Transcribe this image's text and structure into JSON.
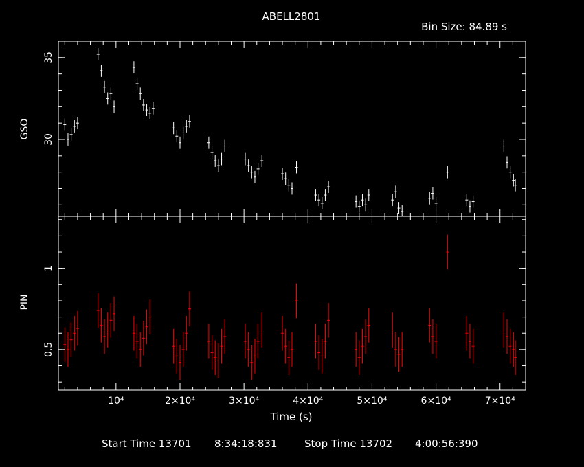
{
  "header": {
    "title": "ABELL2801",
    "bin_size": "Bin Size: 84.89 s"
  },
  "footer": {
    "start_label": "Start Time 13701",
    "start_time": "8:34:18:831",
    "stop_label": "Stop Time 13702",
    "stop_time": "4:00:56:390"
  },
  "colors": {
    "background": "#000000",
    "gso": "#ffffff",
    "pin": "#ff0000",
    "axes": "#ffffff"
  },
  "chart_data": [
    {
      "type": "scatter",
      "title": "ABELL2801",
      "xlabel": "Time (s)",
      "ylabel": "GSO",
      "xlim": [
        1000,
        74000
      ],
      "ylim": [
        25.3,
        36.0
      ],
      "y_ticks": [
        {
          "value": 30,
          "label": "30"
        },
        {
          "value": 35,
          "label": "35"
        }
      ],
      "series": [
        {
          "color": "#ffffff",
          "points": [
            [
              2000,
              30.9
            ],
            [
              2500,
              30.0
            ],
            [
              3000,
              30.3
            ],
            [
              3500,
              30.8
            ],
            [
              4000,
              31.0
            ],
            [
              7200,
              35.2
            ],
            [
              7700,
              34.2
            ],
            [
              8200,
              33.2
            ],
            [
              8700,
              32.5
            ],
            [
              9200,
              32.8
            ],
            [
              9700,
              32.0
            ],
            [
              12800,
              34.4
            ],
            [
              13300,
              33.4
            ],
            [
              13800,
              32.8
            ],
            [
              14300,
              32.1
            ],
            [
              14800,
              31.8
            ],
            [
              15300,
              31.6
            ],
            [
              15800,
              31.9
            ],
            [
              19000,
              30.7
            ],
            [
              19500,
              30.2
            ],
            [
              20000,
              29.8
            ],
            [
              20500,
              30.4
            ],
            [
              21000,
              30.8
            ],
            [
              21500,
              31.1
            ],
            [
              24500,
              29.8
            ],
            [
              25000,
              29.2
            ],
            [
              25500,
              28.7
            ],
            [
              26000,
              28.4
            ],
            [
              26500,
              28.8
            ],
            [
              27000,
              29.6
            ],
            [
              30200,
              28.8
            ],
            [
              30700,
              28.4
            ],
            [
              31200,
              28.0
            ],
            [
              31700,
              27.7
            ],
            [
              32200,
              28.2
            ],
            [
              32800,
              28.7
            ],
            [
              36000,
              27.9
            ],
            [
              36500,
              27.6
            ],
            [
              37000,
              27.2
            ],
            [
              37500,
              27.0
            ],
            [
              38200,
              28.3
            ],
            [
              41200,
              26.6
            ],
            [
              41700,
              26.3
            ],
            [
              42200,
              26.1
            ],
            [
              42700,
              26.6
            ],
            [
              43200,
              27.1
            ],
            [
              47500,
              26.2
            ],
            [
              48000,
              25.9
            ],
            [
              48500,
              26.3
            ],
            [
              49000,
              26.0
            ],
            [
              49500,
              26.6
            ],
            [
              53200,
              26.3
            ],
            [
              53700,
              26.8
            ],
            [
              54200,
              25.8
            ],
            [
              54700,
              25.6
            ],
            [
              59000,
              26.4
            ],
            [
              59500,
              26.7
            ],
            [
              60000,
              26.1
            ],
            [
              61800,
              28.0
            ],
            [
              64800,
              26.3
            ],
            [
              65300,
              25.9
            ],
            [
              65800,
              26.2
            ],
            [
              70600,
              29.6
            ],
            [
              71100,
              28.6
            ],
            [
              71600,
              28.0
            ],
            [
              72100,
              27.5
            ],
            [
              72400,
              27.2
            ]
          ]
        }
      ]
    },
    {
      "type": "scatter",
      "xlabel": "Time (s)",
      "ylabel": "PIN",
      "xlim": [
        1000,
        74000
      ],
      "ylim": [
        0.25,
        1.32
      ],
      "x_ticks": [
        {
          "value": 10000,
          "label": "10⁴"
        },
        {
          "value": 20000,
          "label": "2×10⁴"
        },
        {
          "value": 30000,
          "label": "3×10⁴"
        },
        {
          "value": 40000,
          "label": "4×10⁴"
        },
        {
          "value": 50000,
          "label": "5×10⁴"
        },
        {
          "value": 60000,
          "label": "6×10⁴"
        },
        {
          "value": 70000,
          "label": "7×10⁴"
        }
      ],
      "y_ticks": [
        {
          "value": 0.5,
          "label": "0.5"
        },
        {
          "value": 1,
          "label": "1"
        }
      ],
      "series": [
        {
          "color": "#ff0000",
          "points": [
            [
              2000,
              0.53
            ],
            [
              2500,
              0.5
            ],
            [
              3000,
              0.56
            ],
            [
              3500,
              0.6
            ],
            [
              4000,
              0.63
            ],
            [
              7200,
              0.74
            ],
            [
              7700,
              0.65
            ],
            [
              8200,
              0.58
            ],
            [
              8700,
              0.62
            ],
            [
              9200,
              0.68
            ],
            [
              9700,
              0.72
            ],
            [
              12800,
              0.6
            ],
            [
              13300,
              0.55
            ],
            [
              13800,
              0.5
            ],
            [
              14300,
              0.57
            ],
            [
              14800,
              0.64
            ],
            [
              15300,
              0.7
            ],
            [
              19000,
              0.52
            ],
            [
              19500,
              0.46
            ],
            [
              20000,
              0.42
            ],
            [
              20500,
              0.5
            ],
            [
              21000,
              0.6
            ],
            [
              21500,
              0.75
            ],
            [
              24500,
              0.55
            ],
            [
              25000,
              0.48
            ],
            [
              25500,
              0.45
            ],
            [
              26000,
              0.43
            ],
            [
              26500,
              0.52
            ],
            [
              27000,
              0.58
            ],
            [
              30200,
              0.55
            ],
            [
              30700,
              0.5
            ],
            [
              31200,
              0.42
            ],
            [
              31700,
              0.46
            ],
            [
              32200,
              0.55
            ],
            [
              32800,
              0.62
            ],
            [
              36000,
              0.6
            ],
            [
              36500,
              0.52
            ],
            [
              37000,
              0.45
            ],
            [
              37500,
              0.5
            ],
            [
              38200,
              0.8
            ],
            [
              41200,
              0.55
            ],
            [
              41700,
              0.48
            ],
            [
              42200,
              0.46
            ],
            [
              42700,
              0.55
            ],
            [
              43200,
              0.68
            ],
            [
              47500,
              0.5
            ],
            [
              48000,
              0.45
            ],
            [
              48500,
              0.52
            ],
            [
              49000,
              0.58
            ],
            [
              49500,
              0.65
            ],
            [
              53200,
              0.62
            ],
            [
              53700,
              0.5
            ],
            [
              54200,
              0.47
            ],
            [
              54700,
              0.5
            ],
            [
              59000,
              0.65
            ],
            [
              59500,
              0.58
            ],
            [
              60000,
              0.55
            ],
            [
              61800,
              1.1
            ],
            [
              64800,
              0.6
            ],
            [
              65300,
              0.55
            ],
            [
              65800,
              0.52
            ],
            [
              70600,
              0.62
            ],
            [
              71100,
              0.58
            ],
            [
              71600,
              0.52
            ],
            [
              72100,
              0.5
            ],
            [
              72400,
              0.45
            ]
          ]
        }
      ]
    }
  ]
}
